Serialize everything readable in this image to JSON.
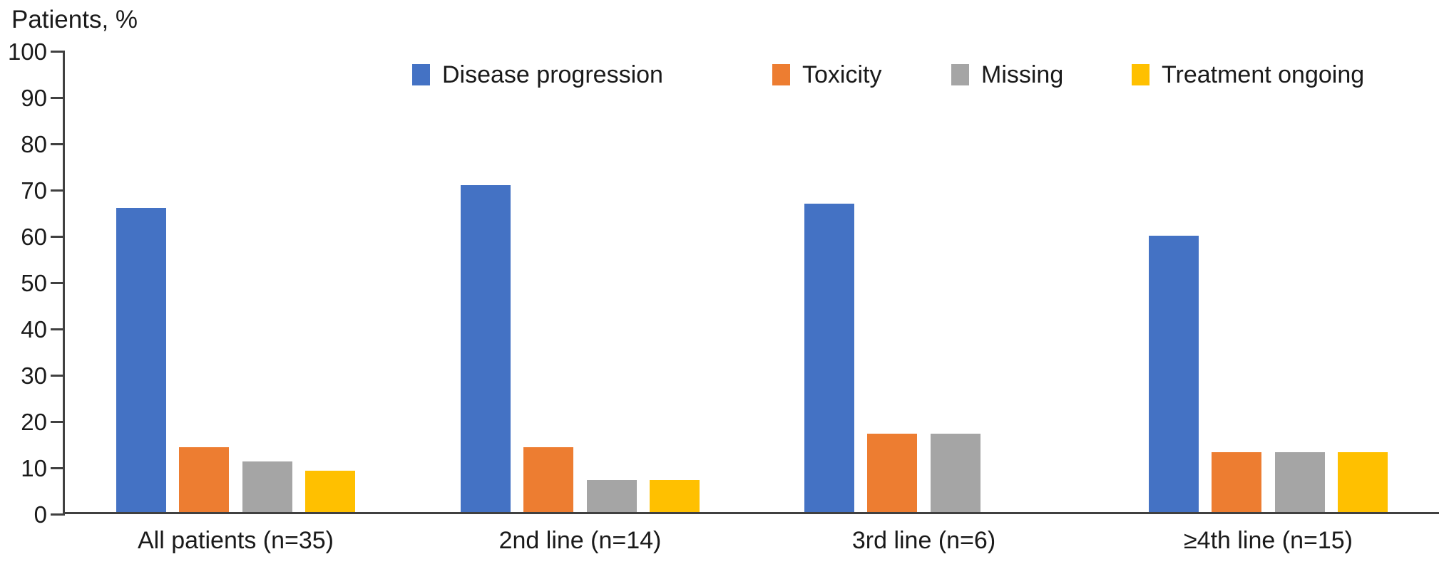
{
  "chart_data": {
    "type": "bar",
    "title": "Patients, %",
    "ylabel": "Patients, %",
    "xlabel": "",
    "categories": [
      "All patients (n=35)",
      "2nd line (n=14)",
      "3rd line (n=6)",
      "≥4th line (n=15)"
    ],
    "series": [
      {
        "name": "Disease progression",
        "color": "#4472C4",
        "values": [
          66,
          71,
          67,
          60
        ]
      },
      {
        "name": "Toxicity",
        "color": "#ED7D31",
        "values": [
          14,
          14,
          17,
          13
        ]
      },
      {
        "name": "Missing",
        "color": "#A5A5A5",
        "values": [
          11,
          7,
          17,
          13
        ]
      },
      {
        "name": "Treatment ongoing",
        "color": "#FFC000",
        "values": [
          9,
          7,
          0,
          13
        ]
      }
    ],
    "ylim": [
      0,
      100
    ],
    "yticks": [
      0,
      10,
      20,
      30,
      40,
      50,
      60,
      70,
      80,
      90,
      100
    ],
    "grid": false,
    "legend_position": "top"
  },
  "axis": {
    "line_color": "#404040",
    "text_color": "#1a1a1a"
  }
}
